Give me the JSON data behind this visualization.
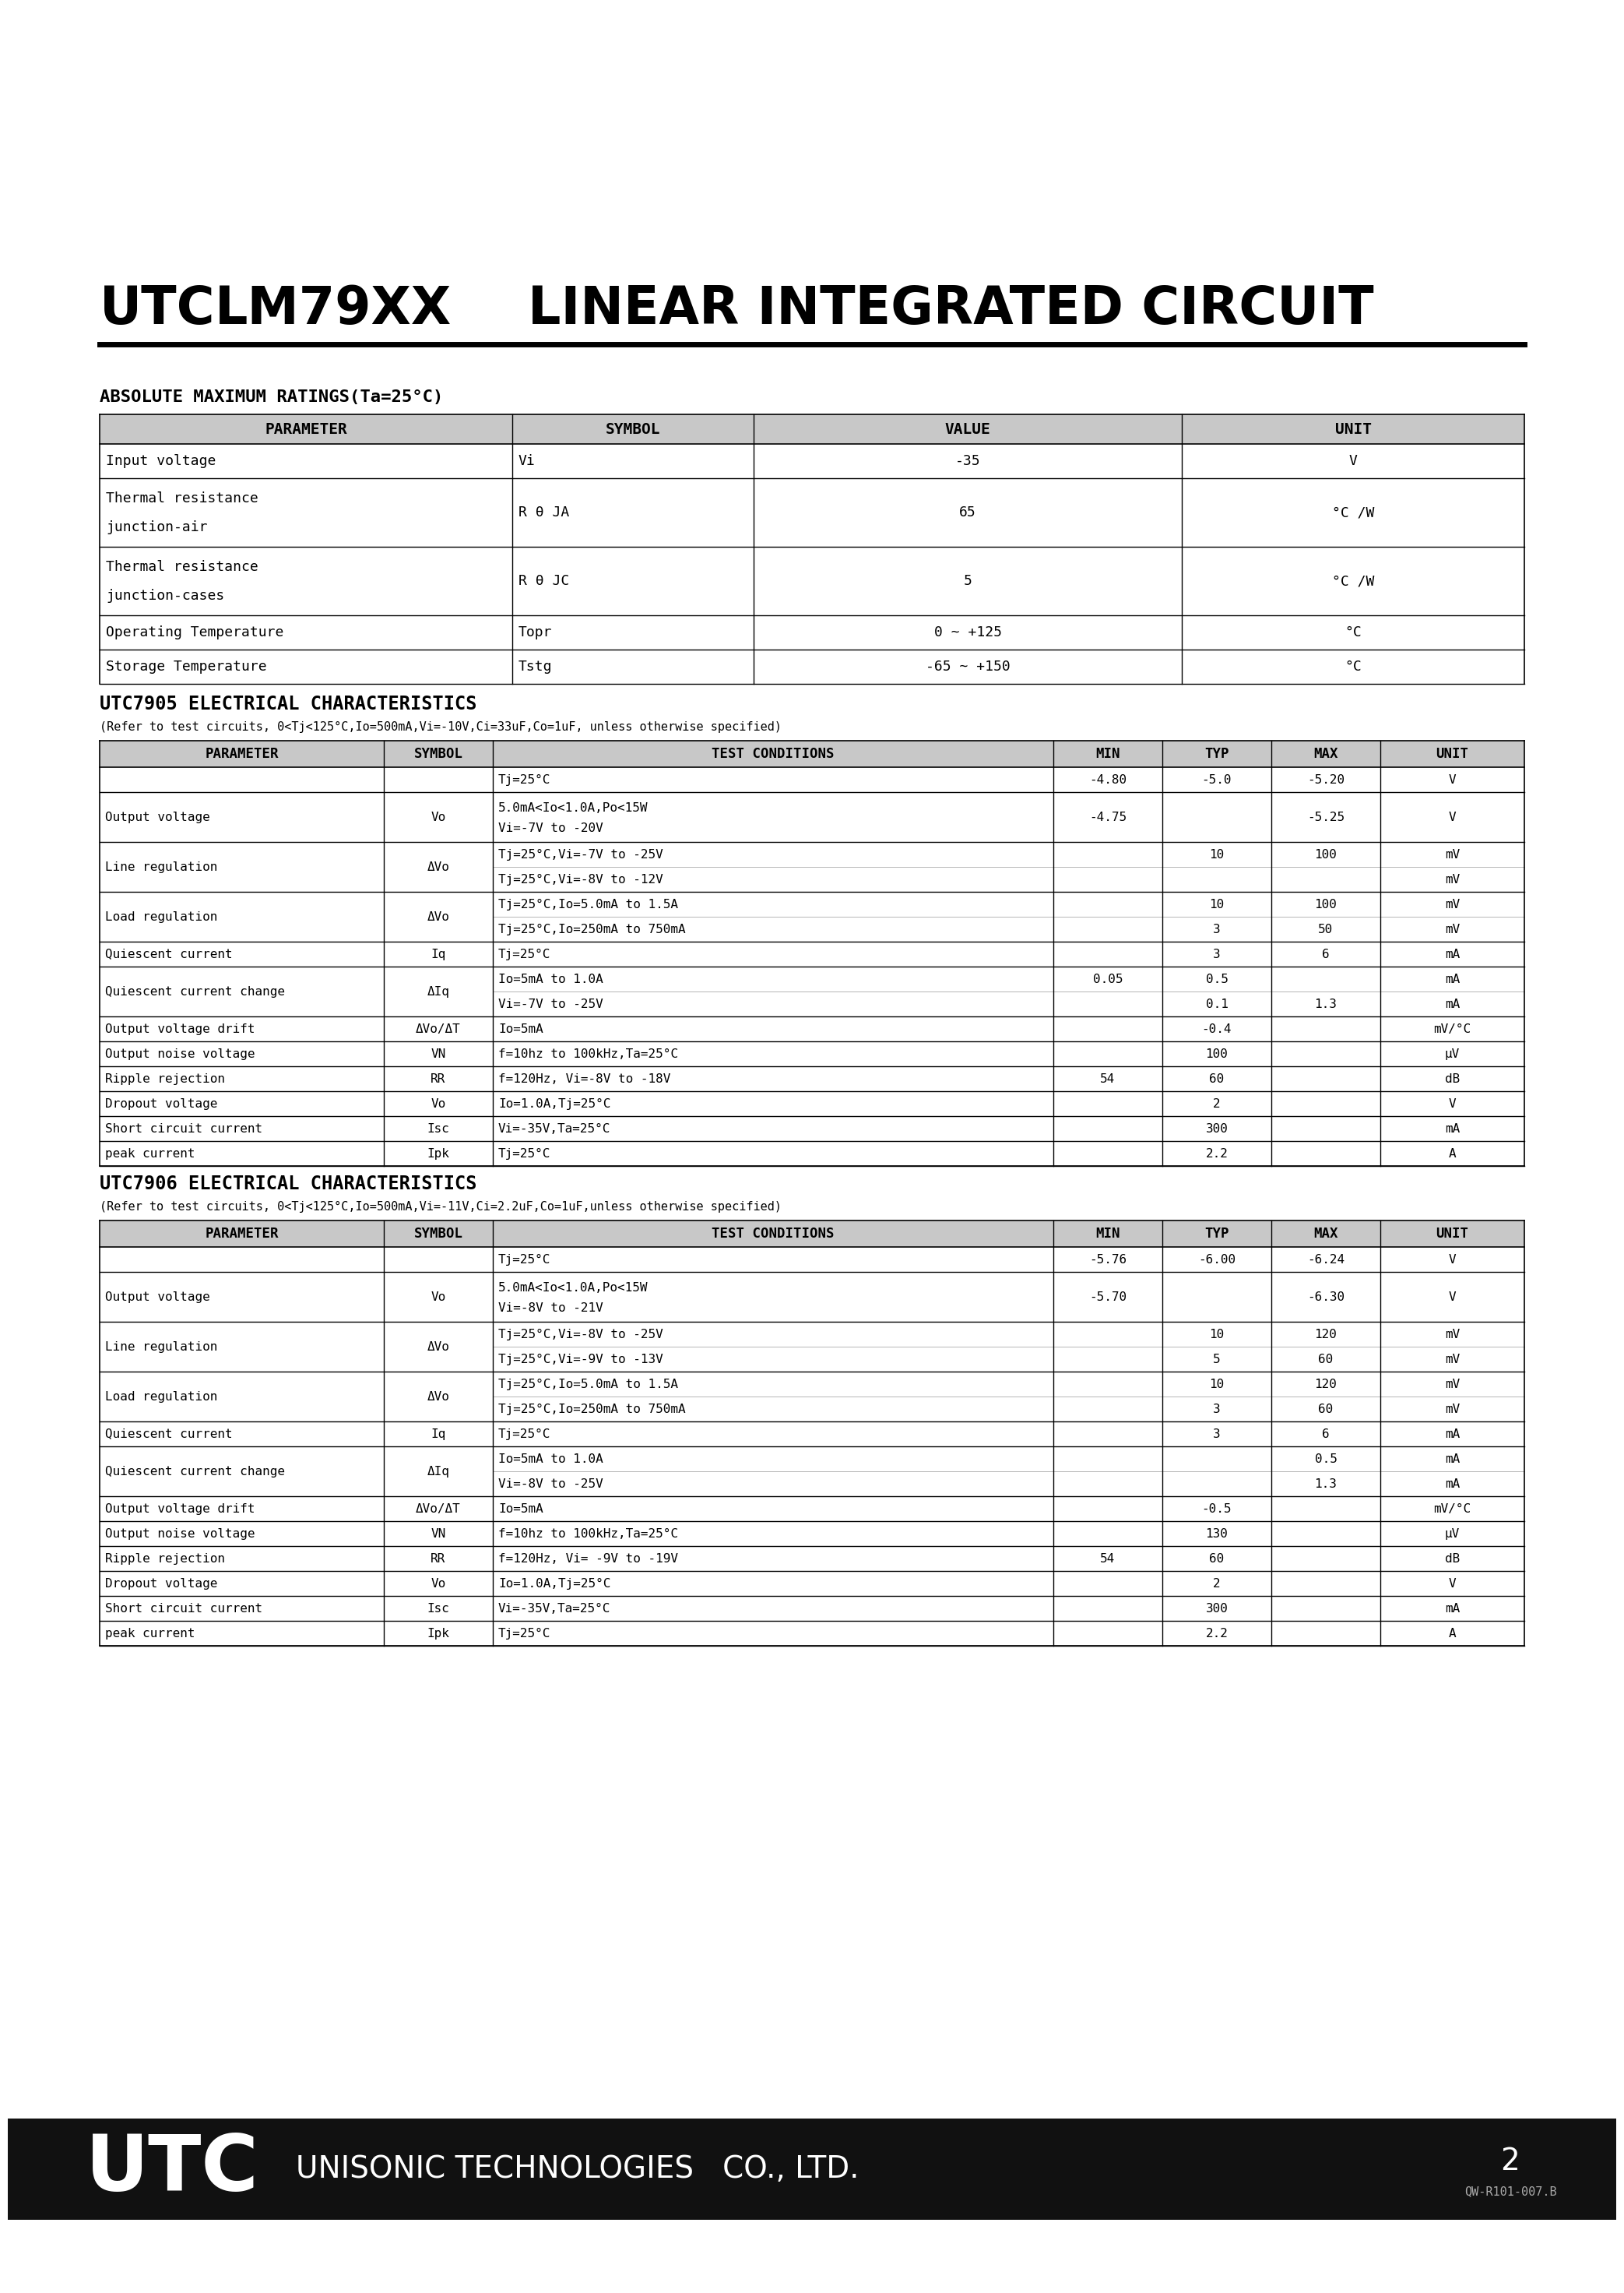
{
  "abs_max_title": "ABSOLUTE MAXIMUM RATINGS(Ta=25°C)",
  "abs_max_header": [
    "PARAMETER",
    "SYMBOL",
    "VALUE",
    "UNIT"
  ],
  "abs_max_rows": [
    [
      "Input voltage",
      "Vi",
      "-35",
      "V"
    ],
    [
      "Thermal resistance\njunction-air",
      "R θ JA",
      "65",
      "°C /W"
    ],
    [
      "Thermal resistance\njunction-cases",
      "R θ JC",
      "5",
      "°C /W"
    ],
    [
      "Operating Temperature",
      "Topr",
      "0 ~ +125",
      "°C"
    ],
    [
      "Storage Temperature",
      "Tstg",
      "-65 ~ +150",
      "°C"
    ]
  ],
  "utc7905_title": "UTC7905 ELECTRICAL CHARACTERISTICS",
  "utc7905_note": "(Refer to test circuits, 0<Tj<125°C,Io=500mA,Vi=-10V,Ci=33uF,Co=1uF, unless otherwise specified)",
  "utc7905_header": [
    "PARAMETER",
    "SYMBOL",
    "TEST CONDITIONS",
    "MIN",
    "TYP",
    "MAX",
    "UNIT"
  ],
  "utc7905_rows": [
    [
      "",
      "",
      "Tj=25°C",
      "-4.80",
      "-5.0",
      "-5.20",
      "V"
    ],
    [
      "Output voltage",
      "Vo",
      "5.0mA<Io<1.0A,Po<15W\nVi=-7V to -20V",
      "-4.75",
      "",
      "-5.25",
      "V"
    ],
    [
      "Line regulation",
      "ΔVo",
      "Tj=25°C,Vi=-7V to -25V",
      "",
      "10",
      "100",
      "mV"
    ],
    [
      "",
      "",
      "Tj=25°C,Vi=-8V to -12V",
      "",
      "",
      "",
      "mV"
    ],
    [
      "Load regulation",
      "ΔVo",
      "Tj=25°C,Io=5.0mA to 1.5A",
      "",
      "10",
      "100",
      "mV"
    ],
    [
      "",
      "",
      "Tj=25°C,Io=250mA to 750mA",
      "",
      "3",
      "50",
      "mV"
    ],
    [
      "Quiescent current",
      "Iq",
      "Tj=25°C",
      "",
      "3",
      "6",
      "mA"
    ],
    [
      "Quiescent current change",
      "ΔIq",
      "Io=5mA to 1.0A",
      "0.05",
      "0.5",
      "",
      "mA"
    ],
    [
      "",
      "",
      "Vi=-7V to -25V",
      "",
      "0.1",
      "1.3",
      "mA"
    ],
    [
      "Output voltage drift",
      "ΔVo/ΔT",
      "Io=5mA",
      "",
      "-0.4",
      "",
      "mV/°C"
    ],
    [
      "Output noise voltage",
      "VN",
      "f=10hz to 100kHz,Ta=25°C",
      "",
      "100",
      "",
      "µV"
    ],
    [
      "Ripple rejection",
      "RR",
      "f=120Hz, Vi=-8V to -18V",
      "54",
      "60",
      "",
      "dB"
    ],
    [
      "Dropout voltage",
      "Vo",
      "Io=1.0A,Tj=25°C",
      "",
      "2",
      "",
      "V"
    ],
    [
      "Short circuit current",
      "Isc",
      "Vi=-35V,Ta=25°C",
      "",
      "300",
      "",
      "mA"
    ],
    [
      "peak current",
      "Ipk",
      "Tj=25°C",
      "",
      "2.2",
      "",
      "A"
    ]
  ],
  "utc7906_title": "UTC7906 ELECTRICAL CHARACTERISTICS",
  "utc7906_note": "(Refer to test circuits, 0<Tj<125°C,Io=500mA,Vi=-11V,Ci=2.2uF,Co=1uF,unless otherwise specified)",
  "utc7906_header": [
    "PARAMETER",
    "SYMBOL",
    "TEST CONDITIONS",
    "MIN",
    "TYP",
    "MAX",
    "UNIT"
  ],
  "utc7906_rows": [
    [
      "",
      "",
      "Tj=25°C",
      "-5.76",
      "-6.00",
      "-6.24",
      "V"
    ],
    [
      "Output voltage",
      "Vo",
      "5.0mA<Io<1.0A,Po<15W\nVi=-8V to -21V",
      "-5.70",
      "",
      "-6.30",
      "V"
    ],
    [
      "Line regulation",
      "ΔVo",
      "Tj=25°C,Vi=-8V to -25V",
      "",
      "10",
      "120",
      "mV"
    ],
    [
      "",
      "",
      "Tj=25°C,Vi=-9V to -13V",
      "",
      "5",
      "60",
      "mV"
    ],
    [
      "Load regulation",
      "ΔVo",
      "Tj=25°C,Io=5.0mA to 1.5A",
      "",
      "10",
      "120",
      "mV"
    ],
    [
      "",
      "",
      "Tj=25°C,Io=250mA to 750mA",
      "",
      "3",
      "60",
      "mV"
    ],
    [
      "Quiescent current",
      "Iq",
      "Tj=25°C",
      "",
      "3",
      "6",
      "mA"
    ],
    [
      "Quiescent current change",
      "ΔIq",
      "Io=5mA to 1.0A",
      "",
      "",
      "0.5",
      "mA"
    ],
    [
      "",
      "",
      "Vi=-8V to -25V",
      "",
      "",
      "1.3",
      "mA"
    ],
    [
      "Output voltage drift",
      "ΔVo/ΔT",
      "Io=5mA",
      "",
      "-0.5",
      "",
      "mV/°C"
    ],
    [
      "Output noise voltage",
      "VN",
      "f=10hz to 100kHz,Ta=25°C",
      "",
      "130",
      "",
      "µV"
    ],
    [
      "Ripple rejection",
      "RR",
      "f=120Hz, Vi= -9V to -19V",
      "54",
      "60",
      "",
      "dB"
    ],
    [
      "Dropout voltage",
      "Vo",
      "Io=1.0A,Tj=25°C",
      "",
      "2",
      "",
      "V"
    ],
    [
      "Short circuit current",
      "Isc",
      "Vi=-35V,Ta=25°C",
      "",
      "300",
      "",
      "mA"
    ],
    [
      "peak current",
      "Ipk",
      "Tj=25°C",
      "",
      "2.2",
      "",
      "A"
    ]
  ],
  "footer_code": "QW-R101-007.B",
  "bg_color": "#ffffff",
  "text_color": "#000000"
}
